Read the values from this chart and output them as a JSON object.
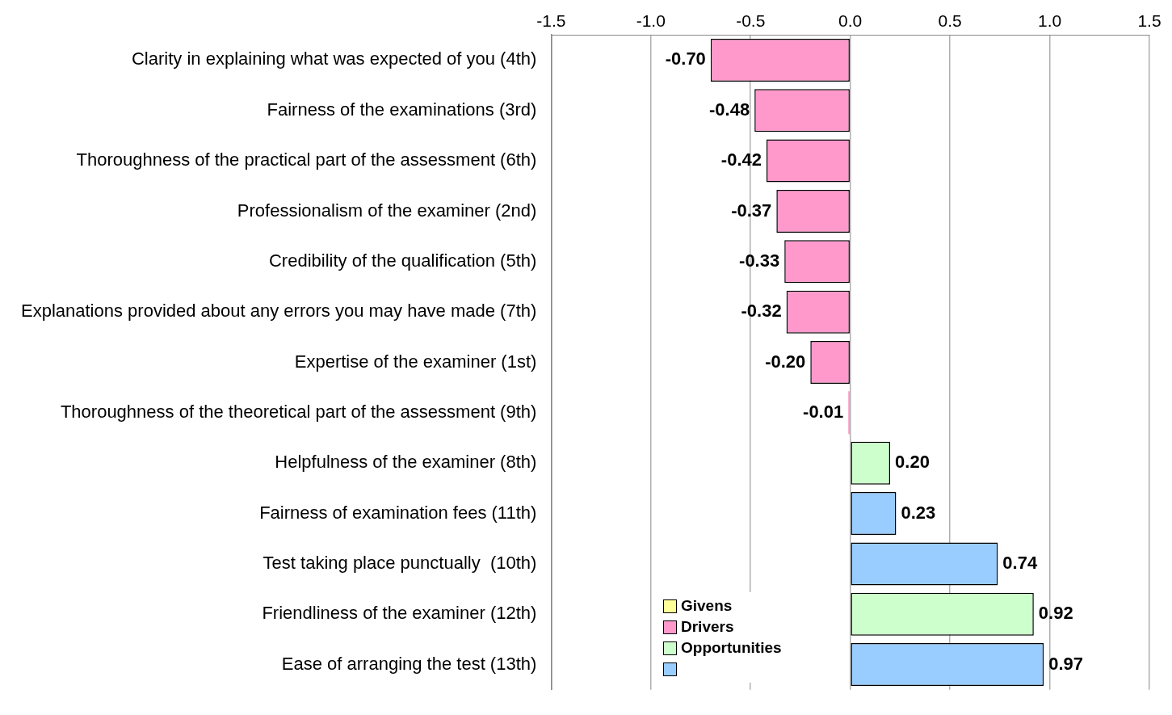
{
  "chart_data": {
    "type": "bar",
    "orientation": "horizontal",
    "stacked": true,
    "categories": [
      "Clarity in explaining what was expected of you (4th)",
      "Fairness of the examinations (3rd)",
      "Thoroughness of the practical part of the assessment (6th)",
      "Professionalism of the examiner (2nd)",
      "Credibility of the qualification (5th)",
      "Explanations provided about any errors you may have made (7th)",
      "Expertise of the examiner (1st)",
      "Thoroughness of the theoretical part of the assessment (9th)",
      "Helpfulness of the examiner (8th)",
      "Fairness of examination fees (11th)",
      "Test taking place punctually  (10th)",
      "Friendliness of the examiner (12th)",
      "Ease of arranging the test (13th)"
    ],
    "series": [
      {
        "name": "Givens",
        "color": "#ffff99",
        "values": [
          null,
          null,
          null,
          null,
          null,
          null,
          null,
          null,
          null,
          null,
          null,
          null,
          null
        ],
        "value_labels": [
          null,
          null,
          null,
          null,
          null,
          null,
          null,
          null,
          null,
          null,
          null,
          null,
          null
        ]
      },
      {
        "name": "Drivers",
        "color": "#ff99cc",
        "values": [
          -0.7,
          -0.48,
          -0.42,
          -0.37,
          -0.33,
          -0.32,
          -0.2,
          -0.01,
          null,
          null,
          null,
          null,
          null
        ],
        "value_labels": [
          "-0.70",
          "-0.48",
          "-0.42",
          "-0.37",
          "-0.33",
          "-0.32",
          "-0.20",
          "-0.01",
          null,
          null,
          null,
          null,
          null
        ]
      },
      {
        "name": "Opportunities",
        "color": "#ccffcc",
        "values": [
          null,
          null,
          null,
          null,
          null,
          null,
          null,
          null,
          0.2,
          null,
          null,
          0.92,
          null
        ],
        "value_labels": [
          null,
          null,
          null,
          null,
          null,
          null,
          null,
          null,
          "0.20",
          null,
          null,
          "0.92",
          null
        ]
      },
      {
        "color": "#99ccff",
        "values": [
          null,
          null,
          null,
          null,
          null,
          null,
          null,
          null,
          null,
          0.23,
          0.74,
          null,
          0.97
        ],
        "value_labels": [
          null,
          null,
          null,
          null,
          null,
          null,
          null,
          null,
          null,
          "0.23",
          "0.74",
          null,
          "0.97"
        ]
      }
    ],
    "xlim": [
      -1.5,
      1.5
    ],
    "xticks": [
      -1.5,
      {
        "value": -1,
        "label": "-1.0"
      },
      -0.5,
      {
        "value": 0,
        "label": "0.0"
      },
      0.5,
      {
        "value": 1,
        "label": "1.0"
      },
      1.5
    ],
    "grid": "x",
    "legend": "bottom left"
  }
}
